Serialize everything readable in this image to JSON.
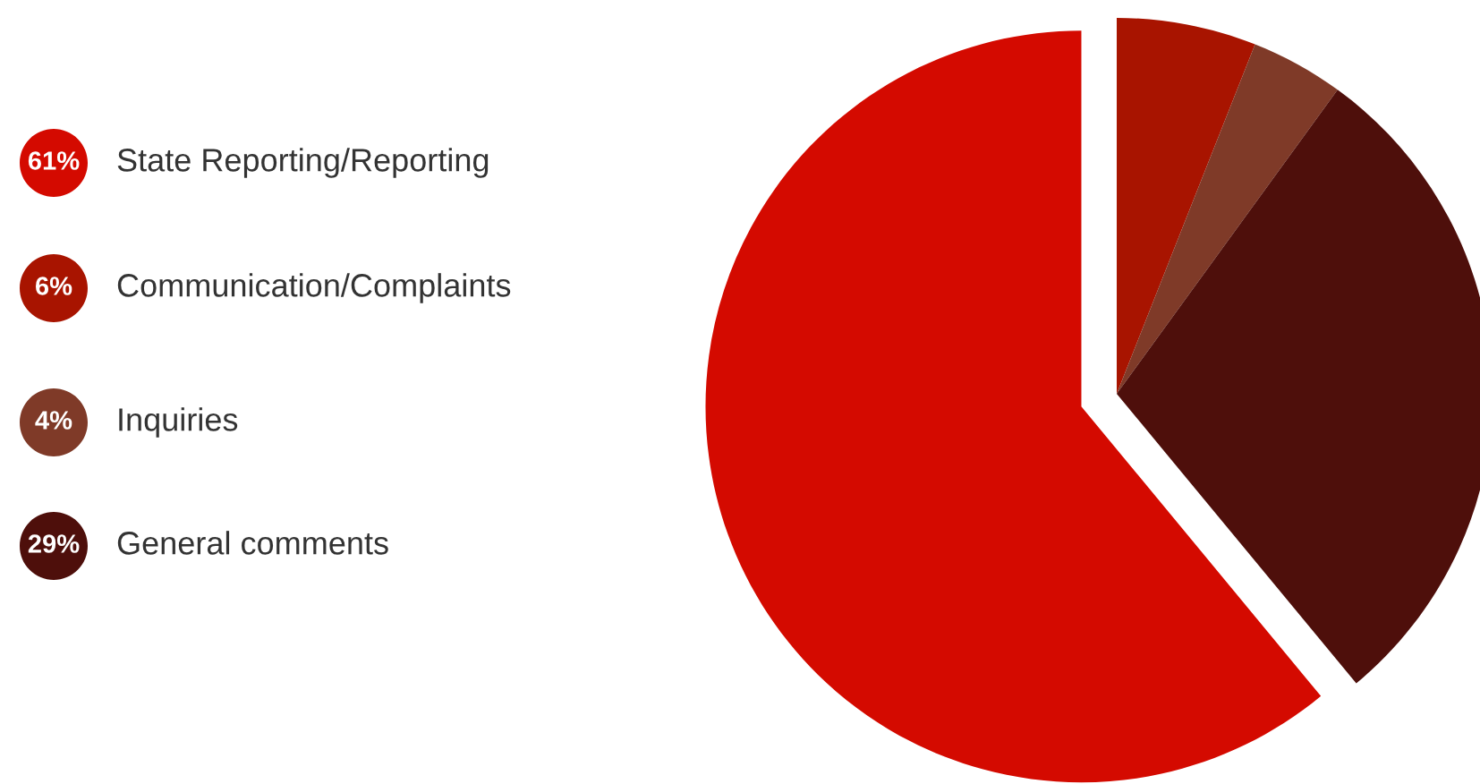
{
  "chart_data": {
    "type": "pie",
    "categories": [
      "State Reporting/Reporting",
      "Communication/Complaints",
      "Inquiries",
      "General comments"
    ],
    "values": [
      61,
      6,
      4,
      29
    ],
    "colors": [
      "#d40a00",
      "#a81400",
      "#7f3a28",
      "#4e0f0b"
    ],
    "value_labels": [
      "61%",
      "6%",
      "4%",
      "29%"
    ],
    "legend": "left"
  }
}
